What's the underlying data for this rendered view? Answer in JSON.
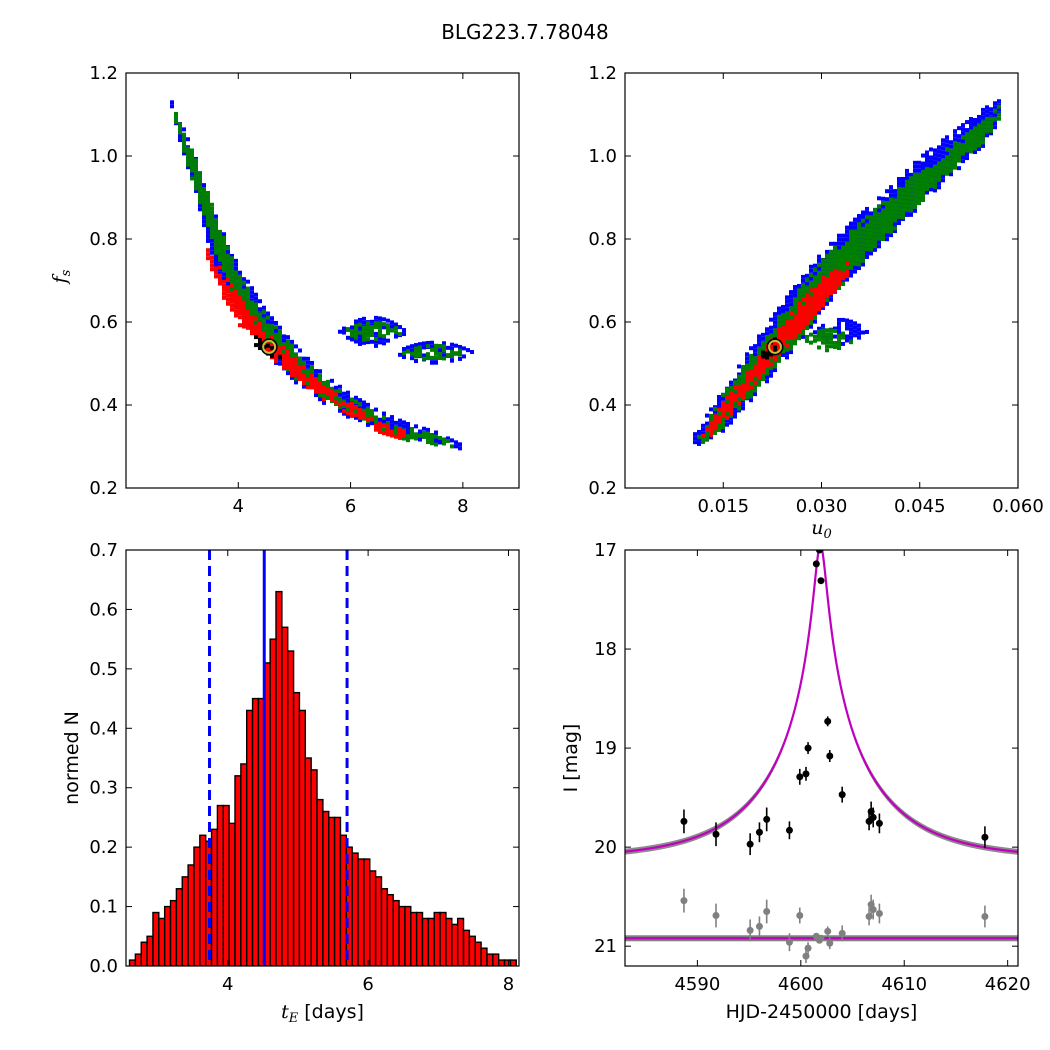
{
  "figure": {
    "title": "BLG223.7.78048"
  },
  "colors": {
    "blue": "#0000ff",
    "green": "#007f00",
    "red": "#ff0000",
    "black": "#000000",
    "magenta": "#bf00bf",
    "gray": "#808080",
    "olive": "#bfbf3f"
  },
  "chart_data": [
    {
      "id": "fs_vs_tE",
      "type": "heatmap",
      "title": "",
      "xlabel": "",
      "ylabel": "f_s",
      "xlim": [
        2.0,
        9.0
      ],
      "ylim": [
        0.2,
        1.2
      ],
      "xticks": [
        4,
        6,
        8
      ],
      "xtick_labels": [
        "4",
        "6",
        "8"
      ],
      "yticks": [
        0.2,
        0.4,
        0.6,
        0.8,
        1.0,
        1.2
      ],
      "ytick_labels": [
        "0.2",
        "0.4",
        "0.6",
        "0.8",
        "1.0",
        "1.2"
      ],
      "best_fit": {
        "x": 4.55,
        "y": 0.54
      },
      "regions": [
        {
          "level": "3sigma",
          "color": "blue",
          "band": [
            [
              2.8,
              1.14,
              1.12
            ],
            [
              3.0,
              1.08,
              1.02
            ],
            [
              3.3,
              0.98,
              0.88
            ],
            [
              3.6,
              0.86,
              0.73
            ],
            [
              4.0,
              0.74,
              0.62
            ],
            [
              4.5,
              0.63,
              0.53
            ],
            [
              5.0,
              0.55,
              0.46
            ],
            [
              5.5,
              0.48,
              0.41
            ],
            [
              6.0,
              0.43,
              0.37
            ],
            [
              6.5,
              0.39,
              0.34
            ],
            [
              7.0,
              0.36,
              0.32
            ],
            [
              7.5,
              0.34,
              0.31
            ],
            [
              7.95,
              0.31,
              0.3
            ]
          ],
          "islands": [
            [
              6.4,
              0.58,
              0.6,
              0.07
            ],
            [
              7.5,
              0.53,
              0.7,
              0.05
            ]
          ]
        },
        {
          "level": "2sigma",
          "color": "green",
          "band": [
            [
              2.85,
              1.13,
              1.1
            ],
            [
              3.05,
              1.06,
              1.0
            ],
            [
              3.35,
              0.96,
              0.88
            ],
            [
              3.65,
              0.84,
              0.75
            ],
            [
              4.0,
              0.72,
              0.63
            ],
            [
              4.5,
              0.62,
              0.54
            ],
            [
              5.0,
              0.54,
              0.47
            ],
            [
              5.5,
              0.47,
              0.42
            ],
            [
              6.0,
              0.42,
              0.38
            ],
            [
              6.5,
              0.38,
              0.35
            ],
            [
              7.0,
              0.35,
              0.32
            ],
            [
              7.5,
              0.33,
              0.31
            ],
            [
              7.9,
              0.31,
              0.3
            ]
          ],
          "islands": [
            [
              6.4,
              0.58,
              0.55,
              0.045
            ],
            [
              7.5,
              0.53,
              0.55,
              0.035
            ]
          ]
        },
        {
          "level": "1sigma",
          "color": "red",
          "band": [
            [
              3.45,
              0.79,
              0.76
            ],
            [
              3.7,
              0.73,
              0.67
            ],
            [
              4.0,
              0.67,
              0.6
            ],
            [
              4.5,
              0.58,
              0.53
            ],
            [
              5.0,
              0.52,
              0.47
            ],
            [
              5.5,
              0.45,
              0.42
            ],
            [
              6.0,
              0.41,
              0.38
            ],
            [
              6.5,
              0.36,
              0.34
            ],
            [
              7.0,
              0.34,
              0.32
            ]
          ],
          "islands": []
        },
        {
          "level": "best",
          "color": "black",
          "band": [
            [
              4.3,
              0.57,
              0.55
            ],
            [
              4.5,
              0.55,
              0.53
            ],
            [
              4.75,
              0.53,
              0.51
            ]
          ],
          "islands": []
        }
      ]
    },
    {
      "id": "fs_vs_u0",
      "type": "heatmap",
      "title": "",
      "xlabel": "u_0",
      "ylabel": "",
      "xlim": [
        0.0,
        0.06
      ],
      "ylim": [
        0.2,
        1.2
      ],
      "xticks": [
        0.015,
        0.03,
        0.045,
        0.06
      ],
      "xtick_labels": [
        "0.015",
        "0.030",
        "0.045",
        "0.060"
      ],
      "yticks": [
        0.2,
        0.4,
        0.6,
        0.8,
        1.0,
        1.2
      ],
      "ytick_labels": [
        "0.2",
        "0.4",
        "0.6",
        "0.8",
        "1.0",
        "1.2"
      ],
      "best_fit": {
        "x": 0.0229,
        "y": 0.54
      },
      "regions": [
        {
          "level": "3sigma",
          "color": "blue",
          "band": [
            [
              0.0105,
              0.33,
              0.3
            ],
            [
              0.015,
              0.44,
              0.34
            ],
            [
              0.02,
              0.56,
              0.43
            ],
            [
              0.025,
              0.67,
              0.52
            ],
            [
              0.03,
              0.77,
              0.62
            ],
            [
              0.035,
              0.85,
              0.72
            ],
            [
              0.04,
              0.92,
              0.8
            ],
            [
              0.045,
              1.0,
              0.88
            ],
            [
              0.05,
              1.06,
              0.96
            ],
            [
              0.055,
              1.12,
              1.03
            ],
            [
              0.0575,
              1.14,
              1.1
            ]
          ],
          "islands": [
            [
              0.033,
              0.58,
              0.004,
              0.06
            ]
          ]
        },
        {
          "level": "2sigma",
          "color": "green",
          "band": [
            [
              0.011,
              0.32,
              0.3
            ],
            [
              0.015,
              0.43,
              0.35
            ],
            [
              0.02,
              0.54,
              0.44
            ],
            [
              0.025,
              0.65,
              0.53
            ],
            [
              0.03,
              0.75,
              0.63
            ],
            [
              0.035,
              0.83,
              0.73
            ],
            [
              0.04,
              0.9,
              0.81
            ],
            [
              0.045,
              0.97,
              0.89
            ],
            [
              0.05,
              1.03,
              0.97
            ],
            [
              0.055,
              1.09,
              1.04
            ],
            [
              0.0575,
              1.13,
              1.1
            ]
          ],
          "islands": [
            [
              0.031,
              0.56,
              0.004,
              0.05
            ]
          ]
        },
        {
          "level": "1sigma",
          "color": "red",
          "band": [
            [
              0.0115,
              0.32,
              0.3
            ],
            [
              0.015,
              0.41,
              0.36
            ],
            [
              0.02,
              0.51,
              0.46
            ],
            [
              0.025,
              0.62,
              0.55
            ],
            [
              0.03,
              0.71,
              0.64
            ],
            [
              0.0345,
              0.75,
              0.72
            ]
          ],
          "islands": []
        },
        {
          "level": "best",
          "color": "black",
          "band": [
            [
              0.021,
              0.54,
              0.51
            ],
            [
              0.0235,
              0.57,
              0.54
            ]
          ],
          "islands": []
        }
      ]
    },
    {
      "id": "tE_histogram",
      "type": "bar",
      "title": "",
      "xlabel": "t_E [days]",
      "ylabel": "normed N",
      "xlim": [
        2.55,
        8.15
      ],
      "ylim": [
        0.0,
        0.7
      ],
      "xticks": [
        4,
        6,
        8
      ],
      "xtick_labels": [
        "4",
        "6",
        "8"
      ],
      "yticks": [
        0.0,
        0.1,
        0.2,
        0.3,
        0.4,
        0.5,
        0.6,
        0.7
      ],
      "ytick_labels": [
        "0.0",
        "0.1",
        "0.2",
        "0.3",
        "0.4",
        "0.5",
        "0.6",
        "0.7"
      ],
      "bin_start": 2.6,
      "bin_width": 0.0835,
      "values": [
        0.01,
        0.02,
        0.04,
        0.05,
        0.09,
        0.08,
        0.1,
        0.11,
        0.13,
        0.15,
        0.17,
        0.2,
        0.22,
        0.21,
        0.23,
        0.27,
        0.27,
        0.24,
        0.32,
        0.34,
        0.43,
        0.45,
        0.45,
        0.51,
        0.55,
        0.63,
        0.57,
        0.53,
        0.46,
        0.43,
        0.35,
        0.33,
        0.28,
        0.26,
        0.25,
        0.25,
        0.22,
        0.2,
        0.19,
        0.18,
        0.18,
        0.16,
        0.15,
        0.13,
        0.12,
        0.11,
        0.1,
        0.1,
        0.09,
        0.09,
        0.08,
        0.08,
        0.09,
        0.09,
        0.08,
        0.07,
        0.08,
        0.06,
        0.05,
        0.04,
        0.03,
        0.02,
        0.02,
        0.01,
        0.01,
        0.01
      ],
      "vlines": [
        {
          "x": 4.52,
          "style": "solid"
        },
        {
          "x": 3.74,
          "style": "dashed"
        },
        {
          "x": 5.7,
          "style": "dashed"
        }
      ]
    },
    {
      "id": "light_curve",
      "type": "scatter",
      "title": "",
      "xlabel": "HJD-2450000 [days]",
      "ylabel": "I [mag]",
      "xlim": [
        4583,
        4621
      ],
      "ylim": [
        21.2,
        17.0
      ],
      "xticks": [
        4590,
        4600,
        4610,
        4620
      ],
      "xtick_labels": [
        "4590",
        "4600",
        "4610",
        "4620"
      ],
      "yticks": [
        17,
        18,
        19,
        20,
        21
      ],
      "ytick_labels": [
        "17",
        "18",
        "19",
        "20",
        "21"
      ],
      "model": {
        "t0": 4601.9,
        "baseline": 20.12,
        "peak": 16.95,
        "width": 1.0,
        "residual_level": 20.92
      },
      "series": [
        {
          "style": "data",
          "color": "black",
          "x": [
            4588.7,
            4591.8,
            4595.1,
            4596.0,
            4596.7,
            4598.9,
            4599.9,
            4600.5,
            4600.7,
            4601.5,
            4601.8,
            4601.95,
            4602.6,
            4602.8,
            4604.0,
            4606.6,
            4606.8,
            4607.0,
            4607.6,
            4617.8
          ],
          "y": [
            19.74,
            19.87,
            19.97,
            19.85,
            19.72,
            19.83,
            19.29,
            19.26,
            19.0,
            17.14,
            17.0,
            17.31,
            18.73,
            19.08,
            19.47,
            19.74,
            19.64,
            19.7,
            19.76,
            19.9
          ],
          "err": [
            0.12,
            0.12,
            0.11,
            0.1,
            0.12,
            0.09,
            0.08,
            0.07,
            0.06,
            0.03,
            0.03,
            0.03,
            0.05,
            0.06,
            0.08,
            0.09,
            0.1,
            0.1,
            0.1,
            0.11
          ]
        },
        {
          "style": "residual",
          "color": "gray",
          "x": [
            4588.7,
            4591.8,
            4595.1,
            4596.0,
            4596.7,
            4598.9,
            4599.9,
            4600.5,
            4600.7,
            4601.5,
            4601.8,
            4601.95,
            4602.6,
            4602.8,
            4604.0,
            4606.6,
            4606.8,
            4607.0,
            4607.6,
            4617.8
          ],
          "y": [
            20.54,
            20.69,
            20.84,
            20.8,
            20.65,
            20.96,
            20.69,
            21.1,
            21.02,
            20.9,
            20.94,
            20.92,
            20.85,
            20.97,
            20.87,
            20.7,
            20.58,
            20.63,
            20.67,
            20.7
          ],
          "err": [
            0.12,
            0.12,
            0.11,
            0.1,
            0.12,
            0.09,
            0.08,
            0.07,
            0.06,
            0.03,
            0.03,
            0.03,
            0.05,
            0.06,
            0.08,
            0.09,
            0.1,
            0.1,
            0.1,
            0.11
          ]
        }
      ]
    }
  ]
}
